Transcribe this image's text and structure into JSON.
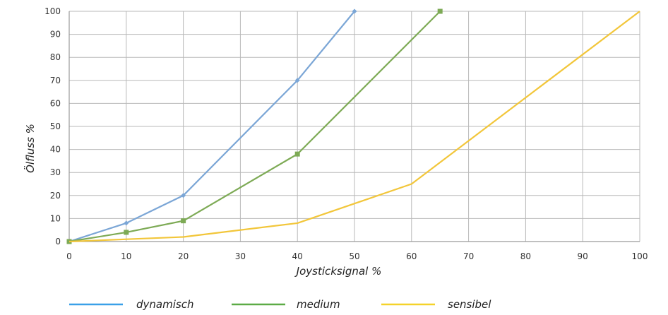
{
  "chart_data": {
    "type": "line",
    "title": "",
    "xlabel": "Joysticksignal %",
    "ylabel": "Ölfluss %",
    "xlim": [
      0,
      100
    ],
    "ylim": [
      0,
      100
    ],
    "x_ticks": [
      0,
      10,
      20,
      30,
      40,
      50,
      60,
      70,
      80,
      90,
      100
    ],
    "y_ticks": [
      0,
      10,
      20,
      30,
      40,
      50,
      60,
      70,
      80,
      90,
      100
    ],
    "grid": true,
    "legend_position": "bottom",
    "series": [
      {
        "name": "dynamisch",
        "color": "#7ba6d6",
        "legend_color": "#3aa0e8",
        "marker": "diamond",
        "x": [
          0,
          10,
          20,
          40,
          50
        ],
        "y": [
          0,
          8,
          20,
          70,
          100
        ]
      },
      {
        "name": "medium",
        "color": "#7daa55",
        "legend_color": "#5cab46",
        "marker": "square",
        "x": [
          0,
          10,
          20,
          40,
          65
        ],
        "y": [
          0,
          4,
          9,
          38,
          100
        ]
      },
      {
        "name": "sensibel",
        "color": "#f2c63a",
        "legend_color": "#f5d22a",
        "marker": "none",
        "x": [
          0,
          20,
          40,
          60,
          100
        ],
        "y": [
          0,
          2,
          8,
          25,
          100
        ]
      }
    ]
  }
}
